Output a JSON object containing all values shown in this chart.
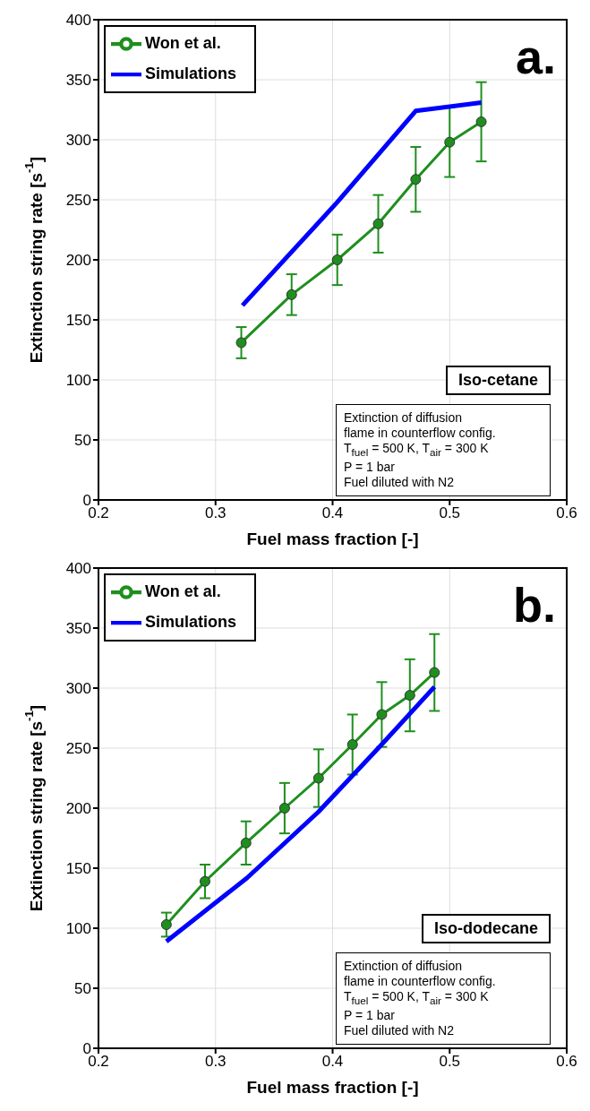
{
  "chart_data": [
    {
      "type": "line",
      "xlabel": "Fuel mass fraction [-]",
      "ylabel": "Extinction string rate [s$^{-1}$]",
      "xlim": [
        0.2,
        0.6
      ],
      "xticks": [
        0.2,
        0.3,
        0.4,
        0.5,
        0.6
      ],
      "ylim": [
        0,
        400
      ],
      "yticks": [
        0,
        50,
        100,
        150,
        200,
        250,
        300,
        350,
        400
      ],
      "grid": true,
      "legend": "top left",
      "annotations": [
        "a.",
        "Iso-cetane",
        "Extinction of diffusion",
        "flame in counterflow config.",
        "T$_{fuel}$ = 500 K, T$_{air}$ = 300 K",
        "P = 1 bar",
        "Fuel diluted with N2"
      ],
      "series": [
        {
          "name": "Won et al.",
          "color": "#1e8f1e",
          "marker": "circle",
          "x": [
            0.322,
            0.365,
            0.404,
            0.439,
            0.471,
            0.5,
            0.527
          ],
          "values": [
            131,
            171,
            200,
            230,
            267,
            298,
            315
          ],
          "errors": [
            13,
            17,
            21,
            24,
            27,
            29,
            33
          ]
        },
        {
          "name": "Simulations",
          "color": "#0000ff",
          "marker": "none",
          "x": [
            0.323,
            0.404,
            0.471,
            0.527
          ],
          "values": [
            162,
            248,
            324,
            331
          ]
        }
      ]
    },
    {
      "type": "line",
      "xlabel": "Fuel mass fraction [-]",
      "ylabel": "Extinction string rate [s$^{-1}$]",
      "xlim": [
        0.2,
        0.6
      ],
      "xticks": [
        0.2,
        0.3,
        0.4,
        0.5,
        0.6
      ],
      "ylim": [
        0,
        400
      ],
      "yticks": [
        0,
        50,
        100,
        150,
        200,
        250,
        300,
        350,
        400
      ],
      "grid": true,
      "legend": "top left",
      "annotations": [
        "b.",
        "Iso-dodecane",
        "Extinction of diffusion",
        "flame in counterflow config.",
        "T$_{fuel}$ = 500 K, T$_{air}$ = 300 K",
        "P = 1 bar",
        "Fuel diluted with N2"
      ],
      "series": [
        {
          "name": "Won et al.",
          "color": "#1e8f1e",
          "marker": "circle",
          "x": [
            0.258,
            0.291,
            0.326,
            0.359,
            0.388,
            0.417,
            0.442,
            0.466,
            0.487
          ],
          "values": [
            103,
            139,
            171,
            200,
            225,
            253,
            278,
            294,
            313
          ],
          "errors": [
            10,
            14,
            18,
            21,
            24,
            25,
            27,
            30,
            32
          ]
        },
        {
          "name": "Simulations",
          "color": "#0000ff",
          "marker": "none",
          "x": [
            0.258,
            0.327,
            0.388,
            0.441,
            0.487
          ],
          "values": [
            89,
            142,
            197,
            252,
            301
          ]
        }
      ]
    }
  ]
}
